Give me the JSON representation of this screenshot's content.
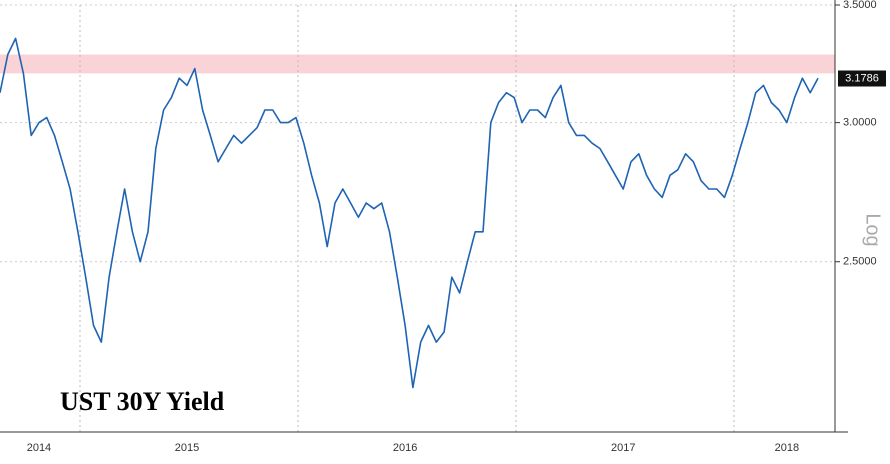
{
  "chart_data": {
    "type": "line",
    "title": "UST 30Y Yield",
    "y_label": "Log",
    "log_scale": true,
    "grid": true,
    "categories": [
      null,
      null,
      null,
      null,
      null,
      "2014",
      null,
      null,
      null,
      null,
      null,
      null,
      null,
      null,
      null,
      null,
      null,
      null,
      null,
      null,
      null,
      null,
      null,
      null,
      "2015",
      null,
      null,
      null,
      null,
      null,
      null,
      null,
      null,
      null,
      null,
      null,
      null,
      null,
      null,
      null,
      null,
      null,
      null,
      null,
      null,
      null,
      null,
      null,
      null,
      null,
      null,
      null,
      "2016",
      null,
      null,
      null,
      null,
      null,
      null,
      null,
      null,
      null,
      null,
      null,
      null,
      null,
      null,
      null,
      null,
      null,
      null,
      null,
      null,
      null,
      null,
      null,
      null,
      null,
      null,
      null,
      "2017",
      null,
      null,
      null,
      null,
      null,
      null,
      null,
      null,
      null,
      null,
      null,
      null,
      null,
      null,
      null,
      null,
      null,
      null,
      null,
      null,
      "2018",
      null,
      null,
      null,
      null
    ],
    "series": [
      {
        "name": "UST 30Y Yield",
        "color": "#1f63b4",
        "values": [
          3.12,
          3.28,
          3.35,
          3.2,
          2.95,
          3.0,
          3.02,
          2.95,
          2.85,
          2.75,
          2.6,
          2.45,
          2.3,
          2.25,
          2.45,
          2.6,
          2.75,
          2.6,
          2.5,
          2.6,
          2.9,
          3.05,
          3.1,
          3.18,
          3.15,
          3.22,
          3.05,
          2.95,
          2.85,
          2.9,
          2.95,
          2.92,
          2.95,
          2.98,
          3.05,
          3.05,
          3.0,
          3.0,
          3.02,
          2.92,
          2.8,
          2.7,
          2.55,
          2.7,
          2.75,
          2.7,
          2.65,
          2.7,
          2.68,
          2.7,
          2.6,
          2.45,
          2.3,
          2.12,
          2.25,
          2.3,
          2.25,
          2.28,
          2.45,
          2.4,
          2.5,
          2.6,
          2.6,
          3.0,
          3.08,
          3.12,
          3.1,
          3.0,
          3.05,
          3.05,
          3.02,
          3.1,
          3.15,
          3.0,
          2.95,
          2.95,
          2.92,
          2.9,
          2.85,
          2.8,
          2.75,
          2.85,
          2.88,
          2.8,
          2.75,
          2.72,
          2.8,
          2.82,
          2.88,
          2.85,
          2.78,
          2.75,
          2.75,
          2.72,
          2.8,
          2.9,
          3.0,
          3.12,
          3.15,
          3.08,
          3.05,
          3.0,
          3.1,
          3.18,
          3.12,
          3.18
        ]
      }
    ],
    "ylim": [
      2.0,
      3.5
    ],
    "yticks": [
      {
        "value": 2.5,
        "label": "2.5000"
      },
      {
        "value": 3.0,
        "label": "3.0000"
      },
      {
        "value": 3.5,
        "label": "3.5000"
      }
    ],
    "highlight_band": {
      "range": [
        3.2,
        3.28
      ],
      "color": "#f9d3d6"
    },
    "last_value": 3.1786
  }
}
